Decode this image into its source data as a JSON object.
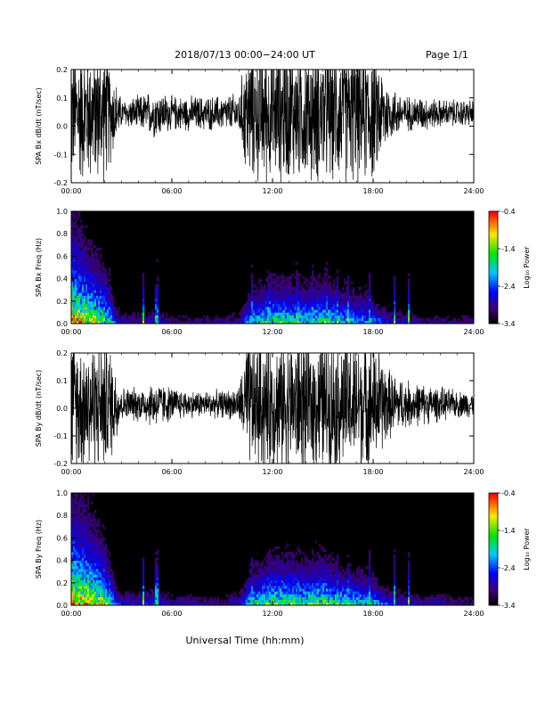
{
  "header": {
    "title": "2018/07/13   00:00−24:00 UT",
    "page": "Page 1/1"
  },
  "xlabel": "Universal Time (hh:mm)",
  "chart_data": [
    {
      "type": "line",
      "ylabel": "SPA Bx dB/dt (nT/sec)",
      "xlim": [
        0,
        24
      ],
      "ylim": [
        -0.2,
        0.2
      ],
      "xticks": [
        "00:00",
        "06:00",
        "12:00",
        "18:00",
        "24:00"
      ],
      "yticks": [
        "-0.2",
        "-0.1",
        "0.0",
        "0.1",
        "0.2"
      ],
      "series": [
        {
          "x": [
            0,
            1,
            2,
            2.5,
            3,
            4,
            5,
            6,
            7,
            8,
            9,
            10,
            10.5,
            11,
            12,
            13,
            14,
            15,
            16,
            17,
            18,
            19,
            20,
            21,
            22,
            23,
            24
          ],
          "amplitude": [
            0.2,
            0.2,
            0.2,
            0.12,
            0.04,
            0.05,
            0.07,
            0.05,
            0.05,
            0.05,
            0.05,
            0.06,
            0.2,
            0.2,
            0.2,
            0.2,
            0.2,
            0.2,
            0.2,
            0.2,
            0.2,
            0.08,
            0.05,
            0.05,
            0.04,
            0.04,
            0.04
          ],
          "offset": 0.05,
          "color": "#000000"
        }
      ]
    },
    {
      "type": "heatmap",
      "ylabel": "SPA Bx Freq (Hz)",
      "xlim": [
        0,
        24
      ],
      "ylim": [
        0,
        1
      ],
      "xticks": [
        "00:00",
        "06:00",
        "12:00",
        "18:00",
        "24:00"
      ],
      "yticks": [
        "0.0",
        "0.2",
        "0.4",
        "0.6",
        "0.8",
        "1.0"
      ],
      "colorbar": {
        "label": "Log₁₀ Power",
        "ticks": [
          "-0.4",
          "-1.4",
          "-2.4",
          "-3.4"
        ],
        "range": [
          -3.4,
          -0.4
        ]
      },
      "activity": {
        "x": [
          0,
          1,
          2,
          2.5,
          3,
          4,
          5,
          6,
          7,
          8,
          9,
          10,
          10.5,
          11,
          12,
          13,
          14,
          15,
          16,
          17,
          18,
          19,
          20,
          21,
          22,
          23,
          24
        ],
        "level": [
          1,
          0.9,
          0.8,
          0.5,
          0.25,
          0.25,
          0.3,
          0.2,
          0.2,
          0.2,
          0.2,
          0.25,
          0.5,
          0.6,
          0.7,
          0.7,
          0.65,
          0.7,
          0.6,
          0.55,
          0.5,
          0.3,
          0.25,
          0.2,
          0.2,
          0.2,
          0.2
        ]
      },
      "spikes": [
        0.5,
        1.2,
        2.3,
        4.3,
        5.1,
        10.8,
        11.8,
        12.6,
        13.5,
        14.4,
        15.2,
        15.9,
        16.5,
        17.8,
        19.3,
        20.1
      ]
    },
    {
      "type": "line",
      "ylabel": "SPA By dB/dt (nT/sec)",
      "xlim": [
        0,
        24
      ],
      "ylim": [
        -0.2,
        0.2
      ],
      "xticks": [
        "00:00",
        "06:00",
        "12:00",
        "18:00",
        "24:00"
      ],
      "yticks": [
        "-0.2",
        "-0.1",
        "0.0",
        "0.1",
        "0.2"
      ],
      "series": [
        {
          "x": [
            0,
            1,
            2,
            2.5,
            3,
            4,
            5,
            6,
            7,
            8,
            9,
            10,
            10.5,
            11,
            12,
            13,
            14,
            15,
            16,
            17,
            18,
            19,
            20,
            21,
            22,
            23,
            24
          ],
          "amplitude": [
            0.2,
            0.2,
            0.2,
            0.15,
            0.05,
            0.05,
            0.07,
            0.05,
            0.04,
            0.04,
            0.04,
            0.05,
            0.2,
            0.2,
            0.2,
            0.2,
            0.2,
            0.2,
            0.2,
            0.2,
            0.2,
            0.1,
            0.07,
            0.06,
            0.05,
            0.04,
            0.04
          ],
          "offset": 0.02,
          "color": "#000000"
        }
      ]
    },
    {
      "type": "heatmap",
      "ylabel": "SPA By Freq (Hz)",
      "xlim": [
        0,
        24
      ],
      "ylim": [
        0,
        1
      ],
      "xticks": [
        "00:00",
        "06:00",
        "12:00",
        "18:00",
        "24:00"
      ],
      "yticks": [
        "0.0",
        "0.2",
        "0.4",
        "0.6",
        "0.8",
        "1.0"
      ],
      "colorbar": {
        "label": "Log₁₀ Power",
        "ticks": [
          "-0.4",
          "-1.4",
          "-2.4",
          "-3.4"
        ],
        "range": [
          -3.4,
          -0.4
        ]
      },
      "activity": {
        "x": [
          0,
          1,
          2,
          2.5,
          3,
          4,
          5,
          6,
          7,
          8,
          9,
          10,
          10.5,
          11,
          12,
          13,
          14,
          15,
          16,
          17,
          18,
          19,
          20,
          21,
          22,
          23,
          24
        ],
        "level": [
          1,
          0.95,
          0.85,
          0.55,
          0.3,
          0.3,
          0.35,
          0.25,
          0.25,
          0.2,
          0.2,
          0.3,
          0.55,
          0.65,
          0.75,
          0.75,
          0.7,
          0.75,
          0.65,
          0.6,
          0.55,
          0.35,
          0.3,
          0.25,
          0.25,
          0.2,
          0.2
        ]
      },
      "spikes": [
        0.5,
        1.2,
        2.3,
        4.3,
        5.1,
        10.8,
        11.8,
        12.6,
        13.5,
        14.4,
        15.2,
        15.9,
        16.5,
        17.8,
        19.3,
        20.1
      ]
    }
  ]
}
